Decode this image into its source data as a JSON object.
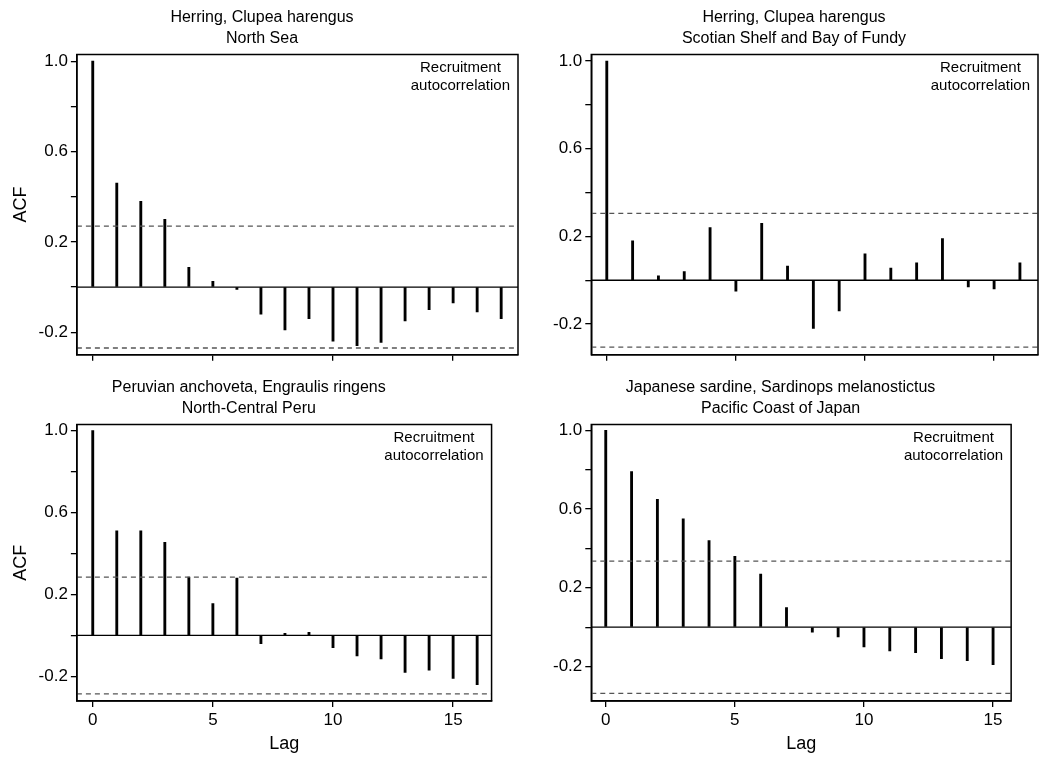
{
  "chart_data": [
    {
      "type": "bar",
      "title": "Herring, Clupea harengus",
      "subtitle": "North Sea",
      "ylabel": "ACF",
      "annotations": [
        "Recruitment autocorrelation"
      ],
      "x": [
        0,
        1,
        2,
        3,
        4,
        5,
        6,
        7,
        8,
        9,
        10,
        11,
        12,
        13,
        14,
        15,
        16,
        17
      ],
      "values": [
        1.0,
        0.46,
        0.38,
        0.3,
        0.087,
        0.025,
        -0.01,
        -0.12,
        -0.19,
        -0.14,
        -0.24,
        -0.26,
        -0.245,
        -0.15,
        -0.1,
        -0.07,
        -0.11,
        -0.14
      ],
      "color": "#000000",
      "xlim": [
        -0.66,
        17.7
      ],
      "xticks": [
        0,
        5,
        10,
        15
      ],
      "ylim": [
        -0.3,
        1.03
      ],
      "yticks": [
        {
          "value": -0.2,
          "label": "-0.2"
        },
        {
          "value": 0,
          "label": null
        },
        {
          "value": 0.2,
          "label": "0.2"
        },
        {
          "value": 0.4,
          "label": null
        },
        {
          "value": 0.6,
          "label": "0.6"
        },
        {
          "value": 0.8,
          "label": null
        },
        {
          "value": 1.0,
          "label": "1.0"
        }
      ],
      "ref_lines": [
        {
          "axis": "y",
          "value": 0,
          "color": "#000000",
          "line_style": "solid"
        },
        {
          "axis": "y",
          "value": 0.27,
          "color": "#555555",
          "line_style": "dashed"
        },
        {
          "axis": "y",
          "value": -0.27,
          "color": "#555555",
          "line_style": "dashed"
        }
      ],
      "tick_labels": "y",
      "grid": false,
      "legend": false
    },
    {
      "type": "bar",
      "title": "Herring, Clupea harengus",
      "subtitle": "Scotian Shelf and Bay of Fundy",
      "annotations": [
        "Recruitment autocorrelation"
      ],
      "x": [
        0,
        1,
        2,
        3,
        4,
        5,
        6,
        7,
        8,
        9,
        10,
        11,
        12,
        13,
        14,
        15,
        16
      ],
      "values": [
        1.0,
        0.18,
        0.02,
        0.04,
        0.24,
        -0.05,
        0.26,
        0.065,
        -0.22,
        -0.14,
        0.12,
        0.055,
        0.08,
        0.19,
        -0.03,
        -0.04,
        0.08
      ],
      "color": "#000000",
      "xlim": [
        -0.6,
        16.7
      ],
      "xticks": [
        0,
        5,
        10,
        15
      ],
      "ylim": [
        -0.34,
        1.03
      ],
      "yticks": [
        {
          "value": -0.2,
          "label": "-0.2"
        },
        {
          "value": 0,
          "label": null
        },
        {
          "value": 0.2,
          "label": "0.2"
        },
        {
          "value": 0.4,
          "label": null
        },
        {
          "value": 0.6,
          "label": "0.6"
        },
        {
          "value": 0.8,
          "label": null
        },
        {
          "value": 1.0,
          "label": "1.0"
        }
      ],
      "ref_lines": [
        {
          "axis": "y",
          "value": 0,
          "color": "#000000",
          "line_style": "solid"
        },
        {
          "axis": "y",
          "value": 0.305,
          "color": "#555555",
          "line_style": "dashed"
        },
        {
          "axis": "y",
          "value": -0.305,
          "color": "#555555",
          "line_style": "dashed"
        }
      ],
      "tick_labels": "y",
      "grid": false,
      "legend": false
    },
    {
      "type": "bar",
      "title": "Peruvian anchoveta, Engraulis ringens",
      "subtitle": "North-Central Peru",
      "xlabel": "Lag",
      "ylabel": "ACF",
      "annotations": [
        "Recruitment autocorrelation"
      ],
      "x": [
        0,
        1,
        2,
        3,
        4,
        5,
        6,
        7,
        8,
        9,
        10,
        11,
        12,
        13,
        14,
        15,
        16
      ],
      "values": [
        1.0,
        0.51,
        0.51,
        0.455,
        0.285,
        0.155,
        0.28,
        -0.04,
        0.01,
        0.015,
        -0.06,
        -0.1,
        -0.115,
        -0.18,
        -0.17,
        -0.21,
        -0.24
      ],
      "color": "#000000",
      "xlim": [
        -0.66,
        16.6
      ],
      "xticks": [
        0,
        5,
        10,
        15
      ],
      "ylim": [
        -0.32,
        1.03
      ],
      "yticks": [
        {
          "value": -0.2,
          "label": "-0.2"
        },
        {
          "value": 0,
          "label": null
        },
        {
          "value": 0.2,
          "label": "0.2"
        },
        {
          "value": 0.4,
          "label": null
        },
        {
          "value": 0.6,
          "label": "0.6"
        },
        {
          "value": 0.8,
          "label": null
        },
        {
          "value": 1.0,
          "label": "1.0"
        }
      ],
      "ref_lines": [
        {
          "axis": "y",
          "value": 0,
          "color": "#000000",
          "line_style": "solid"
        },
        {
          "axis": "y",
          "value": 0.285,
          "color": "#555555",
          "line_style": "dashed"
        },
        {
          "axis": "y",
          "value": -0.285,
          "color": "#555555",
          "line_style": "dashed"
        }
      ],
      "grid": false,
      "legend": false
    },
    {
      "type": "bar",
      "title": "Japanese sardine, Sardinops melanostictus",
      "subtitle": "Pacific Coast of Japan",
      "xlabel": "Lag",
      "annotations": [
        "Recruitment autocorrelation"
      ],
      "x": [
        0,
        1,
        2,
        3,
        4,
        5,
        6,
        7,
        8,
        9,
        10,
        11,
        12,
        13,
        14,
        15
      ],
      "values": [
        1.0,
        0.79,
        0.65,
        0.55,
        0.44,
        0.36,
        0.27,
        0.1,
        -0.025,
        -0.05,
        -0.1,
        -0.12,
        -0.13,
        -0.16,
        -0.17,
        -0.19
      ],
      "color": "#000000",
      "xlim": [
        -0.56,
        15.7
      ],
      "xticks": [
        0,
        5,
        10,
        15
      ],
      "ylim": [
        -0.375,
        1.03
      ],
      "yticks": [
        {
          "value": -0.2,
          "label": "-0.2"
        },
        {
          "value": 0,
          "label": null
        },
        {
          "value": 0.2,
          "label": "0.2"
        },
        {
          "value": 0.4,
          "label": null
        },
        {
          "value": 0.6,
          "label": "0.6"
        },
        {
          "value": 0.8,
          "label": null
        },
        {
          "value": 1.0,
          "label": "1.0"
        }
      ],
      "ref_lines": [
        {
          "axis": "y",
          "value": 0,
          "color": "#000000",
          "line_style": "solid"
        },
        {
          "axis": "y",
          "value": 0.336,
          "color": "#555555",
          "line_style": "dashed"
        },
        {
          "axis": "y",
          "value": -0.336,
          "color": "#555555",
          "line_style": "dashed"
        }
      ],
      "grid": false,
      "legend": false
    }
  ]
}
